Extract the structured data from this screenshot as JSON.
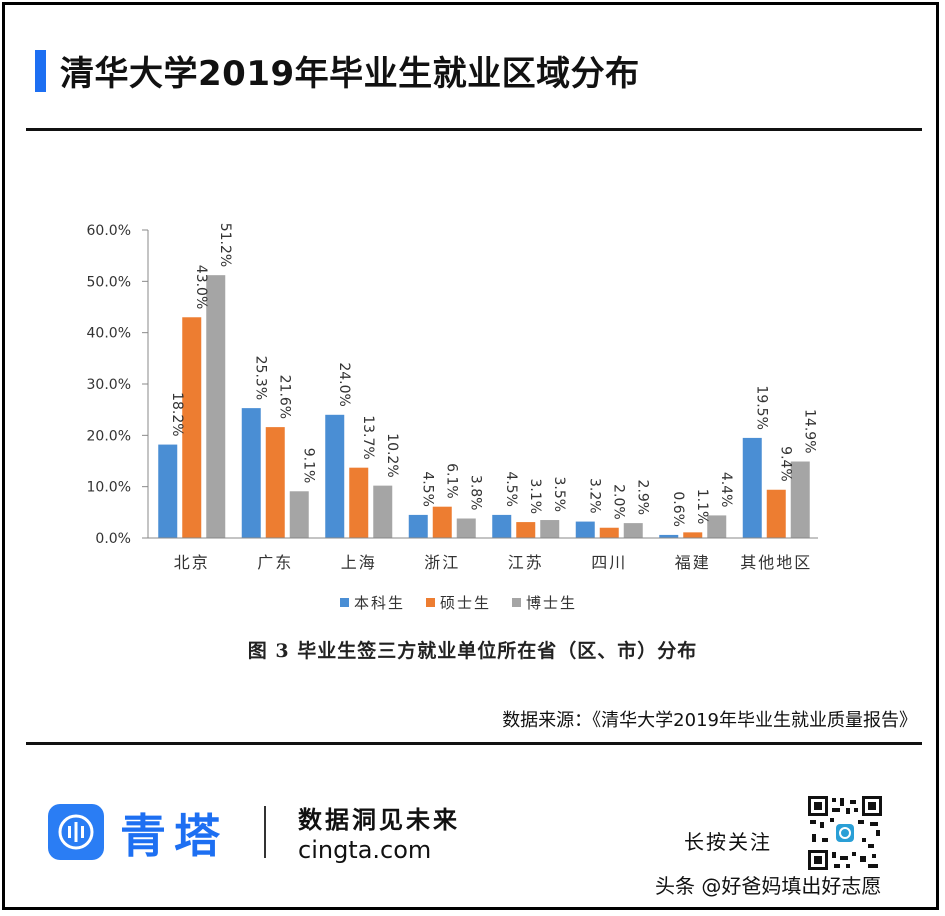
{
  "header": {
    "title": "清华大学2019年毕业生就业区域分布"
  },
  "chart_data": {
    "type": "bar",
    "title": "",
    "caption": "图 3 毕业生签三方就业单位所在省（区、市）分布",
    "categories": [
      "北京",
      "广东",
      "上海",
      "浙江",
      "江苏",
      "四川",
      "福建",
      "其他地区"
    ],
    "series": [
      {
        "name": "本科生",
        "color": "#4a8ed4",
        "values": [
          18.2,
          25.3,
          24.0,
          4.5,
          4.5,
          3.2,
          0.6,
          19.5
        ],
        "labels": [
          "18.2%",
          "25.3%",
          "24.0%",
          "4.5%",
          "4.5%",
          "3.2%",
          "0.6%",
          "19.5%"
        ]
      },
      {
        "name": "硕士生",
        "color": "#ed7d31",
        "values": [
          43.0,
          21.6,
          13.7,
          6.1,
          3.1,
          2.0,
          1.1,
          9.4
        ],
        "labels": [
          "43.0%",
          "21.6%",
          "13.7%",
          "6.1%",
          "3.1%",
          "2.0%",
          "1.1%",
          "9.4%"
        ]
      },
      {
        "name": "博士生",
        "color": "#a5a5a5",
        "values": [
          51.2,
          9.1,
          10.2,
          3.8,
          3.5,
          2.9,
          4.4,
          14.9
        ],
        "labels": [
          "51.2%",
          "9.1%",
          "10.2%",
          "3.8%",
          "3.5%",
          "2.9%",
          "4.4%",
          "14.9%"
        ]
      }
    ],
    "yticks": [
      "0.0%",
      "10.0%",
      "20.0%",
      "30.0%",
      "40.0%",
      "50.0%",
      "60.0%"
    ],
    "ylim": [
      0,
      60
    ],
    "legend_position": "bottom",
    "grid": false
  },
  "source": {
    "text": "数据来源：《清华大学2019年毕业生就业质量报告》"
  },
  "footer": {
    "brand": "青塔",
    "slogan": "数据洞见未来",
    "site": "cingta.com",
    "follow": "长按关注",
    "watermark": "头条 @好爸妈填出好志愿"
  },
  "colors": {
    "accent": "#1d6ff2",
    "benke": "#4a8ed4",
    "shuoshi": "#ed7d31",
    "boshi": "#a5a5a5"
  }
}
